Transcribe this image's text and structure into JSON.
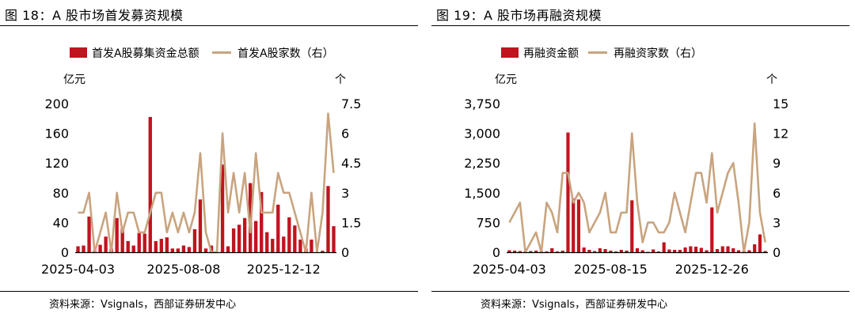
{
  "colors": {
    "bar": "#c0141f",
    "line": "#c8a47f",
    "axis": "#000000"
  },
  "left": {
    "title": "图 18：A 股市场首发募资规模",
    "source": "资料来源：Vsignals，西部证券研发中心",
    "chart_data": {
      "type": "bar+line",
      "legend": {
        "bar": "首发A股募集资金总额",
        "line": "首发A股家数（右）"
      },
      "y_left_unit": "亿元",
      "y_right_unit": "个",
      "y_left_ticks": [
        "0",
        "40",
        "80",
        "120",
        "160",
        "200"
      ],
      "y_right_ticks": [
        "0",
        "1.5",
        "3",
        "4.5",
        "6",
        "7.5"
      ],
      "ylim_left": [
        0,
        200
      ],
      "ylim_right": [
        0,
        7.5
      ],
      "x_tick_labels": [
        {
          "index": 0,
          "label": "2025-04-03"
        },
        {
          "index": 19,
          "label": "2025-08-08"
        },
        {
          "index": 37,
          "label": "2025-12-12"
        }
      ],
      "bars": [
        8,
        9,
        48,
        2,
        10,
        21,
        5,
        46,
        32,
        15,
        9,
        26,
        25,
        182,
        15,
        18,
        20,
        5,
        5,
        9,
        7,
        31,
        71,
        5,
        9,
        0,
        118,
        8,
        32,
        37,
        46,
        93,
        42,
        81,
        27,
        18,
        64,
        21,
        47,
        36,
        17,
        5,
        17,
        0,
        2,
        89,
        35
      ],
      "line": [
        2,
        2,
        3,
        0,
        1,
        2,
        0,
        3,
        1,
        2,
        2,
        1,
        1,
        2,
        3,
        3,
        1,
        2,
        1,
        2,
        1,
        2,
        5,
        1,
        0,
        0,
        6,
        2,
        4,
        2,
        4,
        1,
        5,
        2,
        2,
        2,
        4,
        3,
        3,
        2,
        1,
        0,
        3,
        0,
        2,
        7,
        4
      ]
    }
  },
  "right": {
    "title": "图 19：A 股市场再融资规模",
    "source": "资料来源：Vsignals，西部证券研发中心",
    "chart_data": {
      "type": "bar+line",
      "legend": {
        "bar": "再融资金额",
        "line": "再融资家数（右）"
      },
      "y_left_unit": "亿元",
      "y_right_unit": "个",
      "y_left_ticks": [
        "0",
        "750",
        "1,500",
        "2,250",
        "3,000",
        "3,750"
      ],
      "y_right_ticks": [
        "0",
        "3",
        "6",
        "9",
        "12",
        "15"
      ],
      "ylim_left": [
        0,
        3750
      ],
      "ylim_right": [
        0,
        15
      ],
      "x_tick_labels": [
        {
          "index": 0,
          "label": "2025-04-03"
        },
        {
          "index": 19,
          "label": "2025-08-15"
        },
        {
          "index": 38,
          "label": "2025-12-26"
        }
      ],
      "bars": [
        50,
        40,
        30,
        20,
        30,
        40,
        30,
        20,
        100,
        20,
        40,
        3020,
        1360,
        1330,
        120,
        60,
        30,
        100,
        80,
        40,
        20,
        60,
        40,
        1310,
        100,
        50,
        10,
        70,
        20,
        250,
        70,
        60,
        60,
        120,
        150,
        140,
        110,
        50,
        1130,
        80,
        150,
        150,
        100,
        50,
        30,
        50,
        200,
        450,
        30
      ],
      "line": [
        3,
        4,
        5,
        0,
        1,
        2,
        0,
        5,
        4,
        2,
        8,
        8,
        5,
        6,
        5,
        2,
        3,
        4,
        6,
        2,
        2,
        4,
        4,
        12,
        5,
        1,
        3,
        3,
        2,
        2,
        3,
        6,
        4,
        2,
        5,
        8,
        8,
        5,
        10,
        4,
        6,
        8,
        9,
        5,
        0,
        3,
        13,
        4,
        1
      ]
    }
  }
}
